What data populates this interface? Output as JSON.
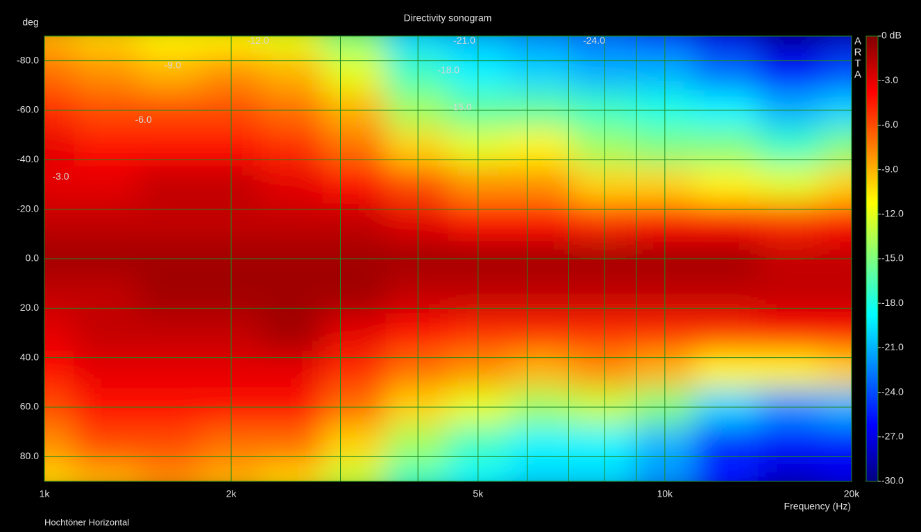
{
  "chart_data": {
    "type": "heatmap",
    "title": "Directivity sonogram",
    "ylabel": "deg",
    "xlabel": "Frequency (Hz)",
    "footer": "Hochtöner Horizontal",
    "brand": "ARTA",
    "x": [
      1000,
      1250,
      1600,
      2000,
      2500,
      3150,
      4000,
      5000,
      6300,
      8000,
      10000,
      12500,
      16000,
      20000
    ],
    "y": [
      -90,
      -75,
      -60,
      -45,
      -30,
      -15,
      0,
      15,
      30,
      45,
      60,
      75,
      90
    ],
    "z": [
      [
        -9,
        -10,
        -11,
        -11,
        -12,
        -15,
        -20,
        -21,
        -22,
        -23,
        -24,
        -27,
        -29,
        -28
      ],
      [
        -7,
        -8,
        -9,
        -8,
        -9,
        -12,
        -17,
        -19,
        -20,
        -21,
        -21,
        -23,
        -26,
        -24
      ],
      [
        -5,
        -6,
        -6,
        -6,
        -7,
        -9,
        -14,
        -16,
        -16,
        -17,
        -18,
        -19,
        -21,
        -20
      ],
      [
        -3,
        -4,
        -4,
        -4,
        -5,
        -7,
        -10,
        -12,
        -11,
        -14,
        -15,
        -15,
        -17,
        -15
      ],
      [
        -3,
        -3,
        -2,
        -2,
        -3,
        -4,
        -6,
        -8,
        -8,
        -10,
        -10,
        -11,
        -12,
        -10
      ],
      [
        -2,
        -2,
        -2,
        -2,
        -2,
        -2,
        -3,
        -4,
        -4,
        -5,
        -4,
        -4,
        -5,
        -4
      ],
      [
        -1,
        -1,
        -1,
        -1,
        -1,
        -1,
        -1,
        -1,
        -1,
        -1,
        -1,
        -1,
        -2,
        -2
      ],
      [
        -2,
        -2,
        -1,
        -1,
        -1,
        -1,
        -2,
        -2,
        -2,
        -2,
        -2,
        -2,
        -2,
        -2
      ],
      [
        -3,
        -2,
        -2,
        -2,
        -1,
        -3,
        -4,
        -5,
        -5,
        -5,
        -5,
        -5,
        -4,
        -4
      ],
      [
        -4,
        -3,
        -3,
        -3,
        -3,
        -5,
        -7,
        -8,
        -9,
        -8,
        -9,
        -11,
        -11,
        -10
      ],
      [
        -6,
        -4,
        -4,
        -4,
        -4,
        -7,
        -10,
        -12,
        -14,
        -13,
        -15,
        -20,
        -22,
        -21
      ],
      [
        -8,
        -6,
        -6,
        -7,
        -7,
        -10,
        -14,
        -17,
        -19,
        -19,
        -21,
        -25,
        -26,
        -26
      ],
      [
        -10,
        -9,
        -8,
        -9,
        -10,
        -13,
        -17,
        -19,
        -20,
        -20,
        -22,
        -26,
        -28,
        -27
      ]
    ],
    "xlim": [
      1000,
      20000
    ],
    "xscale": "log",
    "xticks": [
      {
        "value": 1000,
        "label": "1k"
      },
      {
        "value": 2000,
        "label": "2k"
      },
      {
        "value": 5000,
        "label": "5k"
      },
      {
        "value": 10000,
        "label": "10k"
      },
      {
        "value": 20000,
        "label": "20k"
      }
    ],
    "xminor": [
      3000,
      4000,
      6000,
      7000,
      8000,
      9000
    ],
    "ylim": [
      -90,
      90
    ],
    "yinverted": true,
    "yticks": [
      {
        "value": -80,
        "label": "-80.0"
      },
      {
        "value": -60,
        "label": "-60.0"
      },
      {
        "value": -40,
        "label": "-40.0"
      },
      {
        "value": -20,
        "label": "-20.0"
      },
      {
        "value": 0,
        "label": "0.0"
      },
      {
        "value": 20,
        "label": "20.0"
      },
      {
        "value": 40,
        "label": "40.0"
      },
      {
        "value": 60,
        "label": "60.0"
      },
      {
        "value": 80,
        "label": "80.0"
      }
    ],
    "zlim": [
      -30,
      0
    ],
    "zticks": [
      {
        "value": 0,
        "label": "0 dB"
      },
      {
        "value": -3,
        "label": "-3.0"
      },
      {
        "value": -6,
        "label": "-6.0"
      },
      {
        "value": -9,
        "label": "-9.0"
      },
      {
        "value": -12,
        "label": "-12.0"
      },
      {
        "value": -15,
        "label": "-15.0"
      },
      {
        "value": -18,
        "label": "-18.0"
      },
      {
        "value": -21,
        "label": "-21.0"
      },
      {
        "value": -24,
        "label": "-24.0"
      },
      {
        "value": -27,
        "label": "-27.0"
      },
      {
        "value": -30,
        "label": "-30.0"
      }
    ],
    "colormap": [
      "#00007f",
      "#0000ff",
      "#007fff",
      "#00ffff",
      "#7fff7f",
      "#ffff00",
      "#ff7f00",
      "#ff0000",
      "#7f0000"
    ],
    "grid": true,
    "grid_color": "#1e8a1e",
    "contour_labels": [
      {
        "label": "-12.0",
        "x": 2120,
        "y": -88
      },
      {
        "label": "-21.0",
        "x": 4560,
        "y": -88
      },
      {
        "label": "-24.0",
        "x": 7380,
        "y": -88
      },
      {
        "label": "-9.0",
        "x": 1560,
        "y": -78
      },
      {
        "label": "-18.0",
        "x": 4300,
        "y": -76
      },
      {
        "label": "-15.0",
        "x": 4500,
        "y": -61
      },
      {
        "label": "-6.0",
        "x": 1400,
        "y": -56
      },
      {
        "label": "-3.0",
        "x": 1030,
        "y": -33
      }
    ]
  }
}
